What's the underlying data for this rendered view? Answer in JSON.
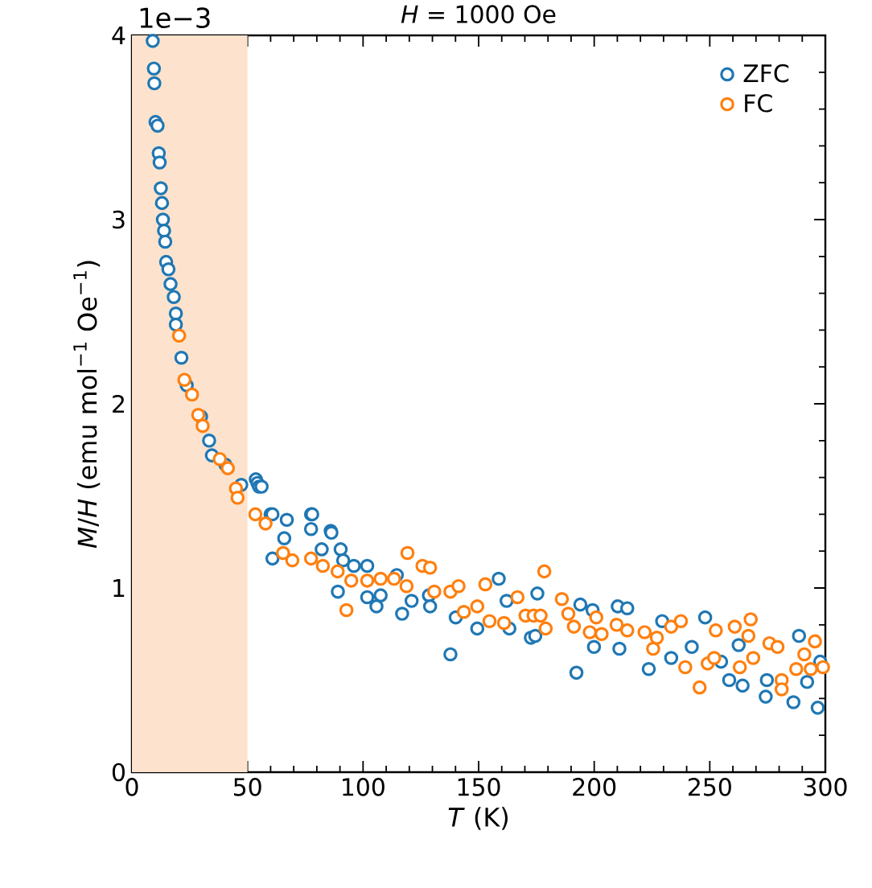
{
  "chart_data": {
    "type": "scatter",
    "title": "*H* = 1000 Oe",
    "xlabel": "*T* (K)",
    "ylabel": "*M*/*H* (emu mol$^{−1}$ Oe$^{−1}$)",
    "annotations": [
      "1e−3"
    ],
    "xlim": [
      0,
      300
    ],
    "xticks": [
      0,
      50,
      100,
      150,
      200,
      250,
      300
    ],
    "ylim": [
      0,
      4
    ],
    "yticks": [
      0,
      1,
      2,
      3,
      4
    ],
    "bands": [
      {
        "axis": "x",
        "from": 0,
        "to": 50,
        "color": "#fde3cd"
      }
    ],
    "legend": "top right",
    "marker": "circle",
    "grid": false,
    "series": [
      {
        "name": "ZFC",
        "color": "#1f77b4",
        "x": [
          9.0,
          9.5,
          9.7,
          10.2,
          11.1,
          11.6,
          12.0,
          12.5,
          13.0,
          13.4,
          13.9,
          14.4,
          14.8,
          15.8,
          16.7,
          18.1,
          19.0,
          19.0,
          21.4,
          23.7,
          29.9,
          33.4,
          34.6,
          40.4,
          47.3,
          53.6,
          54.3,
          55.0,
          56.1,
          60.0,
          60.8,
          60.8,
          65.9,
          67.0,
          77.5,
          77.5,
          78.0,
          82.1,
          86.0,
          86.3,
          89.1,
          90.3,
          91.4,
          96.0,
          101.8,
          101.8,
          105.8,
          107.6,
          114.6,
          116.9,
          121.0,
          128.5,
          129.0,
          137.8,
          140.1,
          149.4,
          158.7,
          162.1,
          163.3,
          172.6,
          174.5,
          175.4,
          192.3,
          194.0,
          199.3,
          199.9,
          210.2,
          210.9,
          214.3,
          223.6,
          229.4,
          233.3,
          242.2,
          248.0,
          254.9,
          258.4,
          262.5,
          264.2,
          274.2,
          274.7,
          286.2,
          288.6,
          292.1,
          296.7,
          297.8
        ],
        "values": [
          3.97,
          3.82,
          3.74,
          3.53,
          3.51,
          3.36,
          3.31,
          3.17,
          3.09,
          3.0,
          2.94,
          2.88,
          2.77,
          2.73,
          2.65,
          2.58,
          2.49,
          2.43,
          2.25,
          2.1,
          1.93,
          1.8,
          1.72,
          1.67,
          1.56,
          1.59,
          1.57,
          1.55,
          1.55,
          1.4,
          1.4,
          1.16,
          1.27,
          1.37,
          1.4,
          1.32,
          1.4,
          1.21,
          1.31,
          1.3,
          0.98,
          1.21,
          1.15,
          1.12,
          1.12,
          0.95,
          0.9,
          0.96,
          1.07,
          0.86,
          0.93,
          0.96,
          0.9,
          0.64,
          0.84,
          0.78,
          1.05,
          0.93,
          0.78,
          0.73,
          0.74,
          0.97,
          0.54,
          0.91,
          0.88,
          0.68,
          0.9,
          0.67,
          0.89,
          0.56,
          0.82,
          0.62,
          0.68,
          0.84,
          0.6,
          0.5,
          0.69,
          0.47,
          0.41,
          0.5,
          0.38,
          0.74,
          0.49,
          0.35,
          0.6
        ]
      },
      {
        "name": "FC",
        "color": "#ff7f0e",
        "x": [
          20.4,
          22.7,
          26.0,
          28.7,
          30.6,
          38.0,
          41.5,
          45.0,
          45.7,
          53.4,
          57.8,
          65.4,
          69.4,
          77.5,
          82.6,
          89.0,
          92.8,
          94.9,
          101.8,
          107.6,
          113.4,
          118.8,
          119.2,
          125.7,
          129.0,
          130.8,
          137.8,
          141.3,
          143.6,
          149.4,
          152.9,
          154.7,
          161.0,
          166.8,
          170.3,
          173.8,
          176.8,
          178.4,
          179.0,
          186.0,
          188.8,
          191.2,
          198.1,
          200.9,
          203.2,
          209.7,
          214.3,
          221.8,
          225.5,
          227.1,
          233.3,
          237.5,
          239.4,
          245.6,
          249.1,
          251.9,
          252.6,
          260.8,
          263.0,
          266.7,
          267.7,
          268.8,
          275.8,
          279.3,
          281.1,
          281.1,
          287.4,
          290.9,
          293.7,
          295.5,
          299.0
        ],
        "values": [
          2.37,
          2.13,
          2.05,
          1.94,
          1.88,
          1.7,
          1.65,
          1.54,
          1.49,
          1.4,
          1.35,
          1.19,
          1.15,
          1.16,
          1.12,
          1.09,
          0.88,
          1.04,
          1.04,
          1.05,
          1.05,
          1.01,
          1.19,
          1.12,
          1.11,
          0.98,
          0.98,
          1.01,
          0.87,
          0.9,
          1.02,
          0.82,
          0.81,
          0.95,
          0.85,
          0.85,
          0.85,
          1.09,
          0.78,
          0.94,
          0.86,
          0.79,
          0.76,
          0.84,
          0.75,
          0.8,
          0.77,
          0.76,
          0.67,
          0.73,
          0.79,
          0.82,
          0.57,
          0.46,
          0.59,
          0.62,
          0.77,
          0.79,
          0.57,
          0.74,
          0.83,
          0.62,
          0.7,
          0.68,
          0.5,
          0.45,
          0.56,
          0.64,
          0.56,
          0.71,
          0.57
        ]
      }
    ]
  }
}
